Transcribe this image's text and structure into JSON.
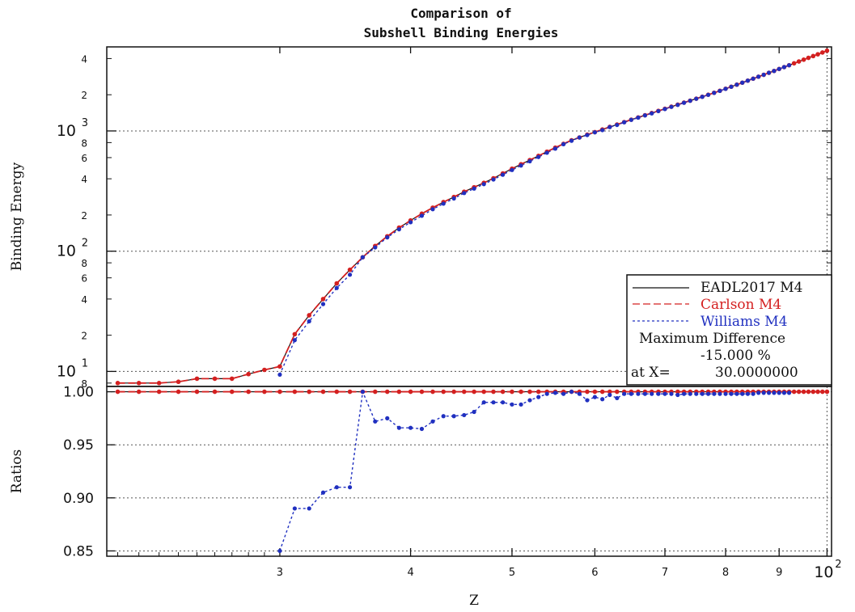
{
  "chart_data": [
    {
      "type": "line",
      "panel": "binding-energy",
      "title": "Comparison of",
      "subtitle": "Subshell Binding Energies",
      "xlabel": "Z",
      "ylabel": "Binding Energy",
      "xscale": "log",
      "yscale": "log",
      "xlim": [
        20.5,
        101
      ],
      "ylim": [
        7.5,
        5000
      ],
      "grid": "dotted",
      "legend_position": "lower-right",
      "y_major_ticks": [
        {
          "value": 10,
          "base": "10",
          "exp": "1"
        },
        {
          "value": 100,
          "base": "10",
          "exp": "2"
        },
        {
          "value": 1000,
          "base": "10",
          "exp": "3"
        }
      ],
      "y_minor_ticks": [
        {
          "value": 8,
          "label": "8"
        },
        {
          "value": 20,
          "label": "2"
        },
        {
          "value": 40,
          "label": "4"
        },
        {
          "value": 60,
          "label": "6"
        },
        {
          "value": 80,
          "label": "8"
        },
        {
          "value": 200,
          "label": "2"
        },
        {
          "value": 400,
          "label": "4"
        },
        {
          "value": 600,
          "label": "6"
        },
        {
          "value": 800,
          "label": "8"
        },
        {
          "value": 2000,
          "label": "2"
        },
        {
          "value": 4000,
          "label": "4"
        }
      ],
      "series": [
        {
          "name": "EADL2017 M4",
          "color": "#111111",
          "style": "solid"
        },
        {
          "name": "Carlson  M4",
          "color": "#d42020",
          "style": "dashed",
          "marker": "dot",
          "x": [
            21,
            22,
            23,
            24,
            25,
            26,
            27,
            28,
            29,
            30,
            31,
            32,
            33,
            34,
            35,
            36,
            37,
            38,
            39,
            40,
            41,
            42,
            43,
            44,
            45,
            46,
            47,
            48,
            49,
            50,
            51,
            52,
            53,
            54,
            55,
            56,
            57,
            58,
            59,
            60,
            61,
            62,
            63,
            64,
            65,
            66,
            67,
            68,
            69,
            70,
            71,
            72,
            73,
            74,
            75,
            76,
            77,
            78,
            79,
            80,
            81,
            82,
            83,
            84,
            85,
            86,
            87,
            88,
            89,
            90,
            91,
            92,
            93,
            94,
            95,
            96,
            97,
            98,
            99,
            100
          ],
          "y": [
            8.0,
            8.0,
            8.0,
            8.2,
            8.7,
            8.7,
            8.7,
            9.5,
            10.3,
            11.0,
            20.4,
            29.3,
            40.0,
            54.0,
            70.0,
            89.0,
            110.5,
            133.0,
            157.0,
            180.0,
            205.0,
            230.0,
            256.0,
            282.0,
            312.0,
            340.0,
            370.0,
            404.0,
            443.0,
            485.0,
            528.0,
            572.0,
            620.0,
            672.0,
            726.0,
            781.0,
            836.0,
            883.0,
            931.0,
            978.0,
            1027.0,
            1080.0,
            1130.0,
            1185.0,
            1241.0,
            1295.0,
            1351.0,
            1409.0,
            1468.0,
            1528.0,
            1591.0,
            1654.0,
            1720.0,
            1786.0,
            1855.0,
            1926.0,
            2000.0,
            2076.0,
            2158.0,
            2243.0,
            2333.0,
            2426.0,
            2520.0,
            2620.0,
            2720.0,
            2825.0,
            2930.0,
            3045.0,
            3155.0,
            3275.0,
            3395.0,
            3520.0,
            3650.0,
            3780.0,
            3915.0,
            4055.0,
            4195.0,
            4340.0,
            4490.0,
            4650.0
          ]
        },
        {
          "name": "Williams M4",
          "color": "#2030c0",
          "style": "dotted",
          "marker": "dot",
          "x": [
            30,
            31,
            32,
            33,
            34,
            35,
            36,
            37,
            38,
            39,
            40,
            41,
            42,
            43,
            44,
            45,
            46,
            47,
            48,
            49,
            50,
            51,
            52,
            53,
            54,
            55,
            56,
            57,
            58,
            59,
            60,
            61,
            62,
            63,
            64,
            65,
            66,
            67,
            68,
            69,
            70,
            71,
            72,
            73,
            74,
            75,
            76,
            77,
            78,
            79,
            80,
            81,
            82,
            83,
            84,
            85,
            86,
            87,
            88,
            89,
            90,
            91,
            92
          ],
          "y": [
            9.4,
            18.2,
            26.1,
            36.3,
            49.4,
            63.7,
            89.0,
            107.4,
            130.2,
            151.9,
            173.9,
            197.0,
            223.3,
            248.3,
            274.3,
            304.2,
            331.5,
            360.8,
            394.3,
            432.3,
            472.9,
            515.7,
            559.3,
            606.9,
            658.6,
            712.4,
            775.5,
            828.5,
            881.7,
            923.6,
            973.1,
            1015.5,
            1077.0,
            1120.7,
            1180.3,
            1236.0,
            1290.0,
            1346.3,
            1399.5,
            1461.0,
            1520.9,
            1585.0,
            1645.9,
            1714.7,
            1782.9,
            1851.7,
            1921.4,
            1995.8,
            2072.4,
            2153.3,
            2239.2,
            2330.2,
            2426.0,
            2520.0,
            2620.0,
            2720.0,
            2825.0,
            2930.0,
            3045.0,
            3155.0,
            3275.0,
            3395.0,
            3520.0
          ]
        }
      ]
    },
    {
      "type": "line",
      "panel": "ratios",
      "xlabel": "Z",
      "ylabel": "Ratios",
      "xscale": "log",
      "xlim": [
        20.5,
        101
      ],
      "ylim": [
        0.845,
        1.005
      ],
      "grid": "dotted",
      "x_ticks": [
        {
          "value": 30,
          "label": "3"
        },
        {
          "value": 40,
          "label": "4"
        },
        {
          "value": 50,
          "label": "5"
        },
        {
          "value": 60,
          "label": "6"
        },
        {
          "value": 70,
          "label": "7"
        },
        {
          "value": 80,
          "label": "8"
        },
        {
          "value": 90,
          "label": "9"
        },
        {
          "value": 100,
          "label": "10",
          "exp": "2"
        }
      ],
      "y_ticks": [
        {
          "value": 1.0,
          "label": "1.00"
        },
        {
          "value": 0.95,
          "label": "0.95"
        },
        {
          "value": 0.9,
          "label": "0.90"
        },
        {
          "value": 0.85,
          "label": "0.85"
        }
      ],
      "series": [
        {
          "name": "EADL2017 M4",
          "color": "#111111",
          "style": "solid",
          "y_const": 1.0
        },
        {
          "name": "Carlson  M4",
          "color": "#d42020",
          "style": "dashed",
          "marker": "dot",
          "y_const": 1.0
        },
        {
          "name": "Williams M4",
          "color": "#2030c0",
          "style": "dotted",
          "marker": "dot",
          "x": [
            30,
            31,
            32,
            33,
            34,
            35,
            36,
            37,
            38,
            39,
            40,
            41,
            42,
            43,
            44,
            45,
            46,
            47,
            48,
            49,
            50,
            51,
            52,
            53,
            54,
            55,
            56,
            57,
            58,
            59,
            60,
            61,
            62,
            63,
            64,
            65,
            66,
            67,
            68,
            69,
            70,
            71,
            72,
            73,
            74,
            75,
            76,
            77,
            78,
            79,
            80,
            81,
            82,
            83,
            84,
            85,
            86,
            87,
            88,
            89,
            90,
            91,
            92
          ],
          "y": [
            0.85,
            0.89,
            0.89,
            0.905,
            0.91,
            0.91,
            1.0,
            0.972,
            0.975,
            0.966,
            0.966,
            0.965,
            0.972,
            0.977,
            0.977,
            0.978,
            0.981,
            0.99,
            0.99,
            0.99,
            0.988,
            0.988,
            0.992,
            0.995,
            0.998,
            0.999,
            0.998,
            1.0,
            0.998,
            0.992,
            0.995,
            0.993,
            0.997,
            0.994,
            0.998,
            0.998,
            0.998,
            0.998,
            0.998,
            0.998,
            0.998,
            0.998,
            0.997,
            0.998,
            0.998,
            0.998,
            0.998,
            0.998,
            0.998,
            0.998,
            0.998,
            0.998,
            0.998,
            0.998,
            0.998,
            0.998,
            0.999,
            0.999,
            0.999,
            0.999,
            0.999,
            0.999,
            0.999
          ]
        }
      ]
    }
  ],
  "legend": {
    "entries": [
      {
        "label": "EADL2017 M4",
        "color": "#111111",
        "dash": ""
      },
      {
        "label": "Carlson  M4",
        "color": "#d42020",
        "dash": "9,4"
      },
      {
        "label": "Williams M4",
        "color": "#2030c0",
        "dash": "3,3"
      }
    ],
    "max_diff_label": "Maximum Difference",
    "max_diff_value": "-15.000 %",
    "at_x_label": "at X=",
    "at_x_value": "30.0000000"
  }
}
